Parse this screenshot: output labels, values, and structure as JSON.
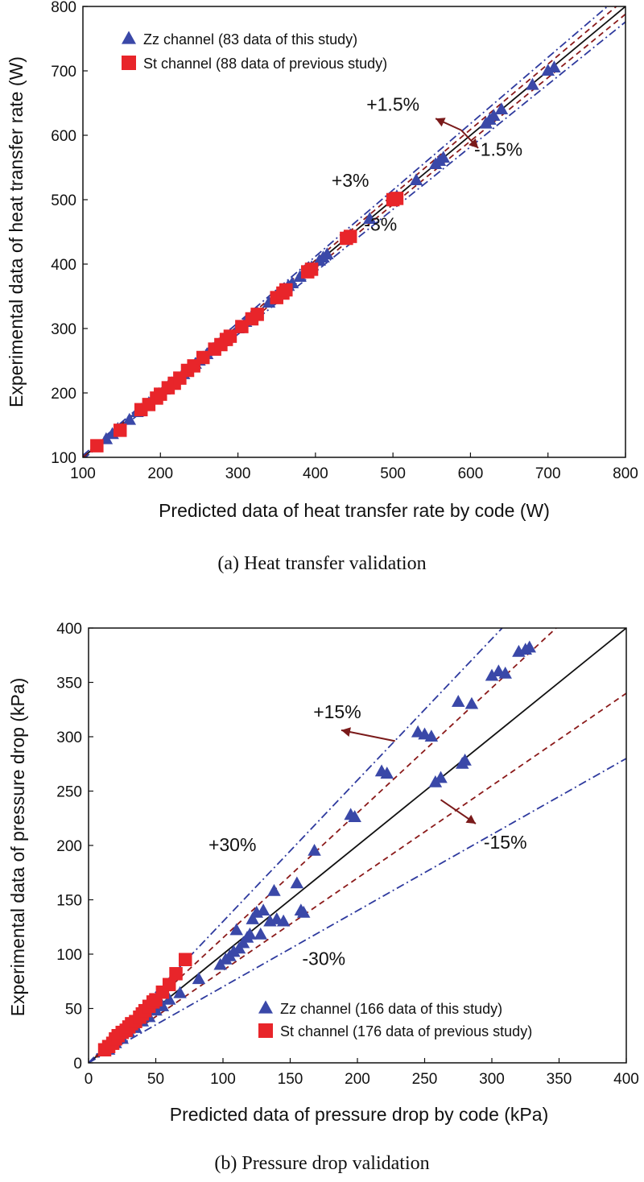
{
  "chart_data": [
    {
      "type": "scatter",
      "caption": "(a)  Heat  transfer  validation",
      "xlabel": "Predicted data of heat transfer rate by code (W)",
      "ylabel": "Experimental data of heat transfer rate (W)",
      "xlim": [
        100,
        800
      ],
      "ylim": [
        100,
        800
      ],
      "xticks": [
        100,
        200,
        300,
        400,
        500,
        600,
        700,
        800
      ],
      "yticks": [
        100,
        200,
        300,
        400,
        500,
        600,
        700,
        800
      ],
      "legend_position": "top-left",
      "reference_lines": [
        {
          "slope": 1.0,
          "style": "solid",
          "color": "#111111"
        },
        {
          "slope": 1.015,
          "style": "dashed",
          "color": "#8b1a1a"
        },
        {
          "slope": 0.985,
          "style": "dashed",
          "color": "#8b1a1a"
        },
        {
          "slope": 1.03,
          "style": "dashdot",
          "color": "#2e3a9e"
        },
        {
          "slope": 0.97,
          "style": "dashdot",
          "color": "#2e3a9e"
        }
      ],
      "annotations": [
        {
          "text": "+1.5%",
          "x": 500,
          "y": 638
        },
        {
          "text": "-1.5%",
          "x": 636,
          "y": 568
        },
        {
          "text": "+3%",
          "x": 445,
          "y": 520
        },
        {
          "text": "-3%",
          "x": 484,
          "y": 452
        }
      ],
      "arrows": [
        {
          "from": [
            588,
            608
          ],
          "to": [
            555,
            626
          ]
        },
        {
          "from": [
            588,
            608
          ],
          "to": [
            610,
            580
          ]
        }
      ],
      "series": [
        {
          "name": "Zz channel (83 data of this study)",
          "marker": "triangle",
          "color": "#3a48a8",
          "x": [
            130,
            138,
            145,
            160,
            170,
            175,
            185,
            190,
            198,
            205,
            210,
            215,
            222,
            230,
            235,
            240,
            245,
            250,
            255,
            260,
            268,
            275,
            280,
            285,
            290,
            300,
            310,
            318,
            325,
            340,
            350,
            358,
            365,
            370,
            380,
            388,
            395,
            405,
            410,
            415,
            445,
            470,
            505,
            530,
            555,
            560,
            565,
            620,
            625,
            630,
            640,
            680,
            700,
            708
          ],
          "y": [
            128,
            136,
            144,
            158,
            170,
            174,
            184,
            190,
            198,
            205,
            210,
            215,
            222,
            229,
            234,
            240,
            245,
            250,
            255,
            260,
            268,
            275,
            280,
            284,
            290,
            300,
            310,
            318,
            324,
            340,
            350,
            358,
            366,
            370,
            380,
            388,
            395,
            405,
            410,
            415,
            445,
            470,
            505,
            530,
            555,
            560,
            565,
            618,
            624,
            630,
            640,
            678,
            700,
            705
          ]
        },
        {
          "name": "St channel (88 data of previous study)",
          "marker": "square",
          "color": "#e8252a",
          "x": [
            118,
            148,
            175,
            185,
            195,
            200,
            210,
            218,
            225,
            235,
            243,
            255,
            270,
            278,
            285,
            290,
            305,
            318,
            325,
            350,
            358,
            362,
            390,
            395,
            440,
            445,
            500,
            505
          ],
          "y": [
            118,
            142,
            174,
            182,
            192,
            198,
            208,
            215,
            223,
            235,
            242,
            255,
            268,
            275,
            283,
            288,
            303,
            315,
            322,
            348,
            355,
            360,
            388,
            392,
            440,
            443,
            500,
            502
          ]
        }
      ]
    },
    {
      "type": "scatter",
      "caption": "(b)  Pressure  drop  validation",
      "xlabel": "Predicted data of pressure drop by code (kPa)",
      "ylabel": "Experimental data of pressure drop (kPa)",
      "xlim": [
        0,
        400
      ],
      "ylim": [
        0,
        400
      ],
      "xticks": [
        0,
        50,
        100,
        150,
        200,
        250,
        300,
        350,
        400
      ],
      "yticks": [
        0,
        50,
        100,
        150,
        200,
        250,
        300,
        350,
        400
      ],
      "legend_position": "bottom-right",
      "reference_lines": [
        {
          "slope": 1.0,
          "style": "solid",
          "color": "#111111"
        },
        {
          "slope": 1.15,
          "style": "dashed",
          "color": "#8b1a1a"
        },
        {
          "slope": 0.85,
          "style": "dashed",
          "color": "#8b1a1a"
        },
        {
          "slope": 1.3,
          "style": "dashdot",
          "color": "#2e3a9e"
        },
        {
          "slope": 0.7,
          "style": "dashdot",
          "color": "#2e3a9e"
        }
      ],
      "annotations": [
        {
          "text": "+15%",
          "x": 185,
          "y": 317
        },
        {
          "text": "-15%",
          "x": 310,
          "y": 197
        },
        {
          "text": "+30%",
          "x": 107,
          "y": 195
        },
        {
          "text": "-30%",
          "x": 175,
          "y": 90
        }
      ],
      "arrows": [
        {
          "from": [
            228,
            296
          ],
          "to": [
            188,
            306
          ]
        },
        {
          "from": [
            262,
            242
          ],
          "to": [
            288,
            220
          ]
        }
      ],
      "series": [
        {
          "name": "Zz channel (166 data of this study)",
          "marker": "triangle",
          "color": "#3a48a8",
          "x": [
            15,
            20,
            25,
            30,
            35,
            40,
            45,
            50,
            55,
            60,
            68,
            82,
            98,
            102,
            105,
            108,
            110,
            112,
            115,
            118,
            120,
            122,
            125,
            128,
            130,
            135,
            138,
            140,
            145,
            155,
            158,
            160,
            168,
            195,
            198,
            218,
            222,
            245,
            250,
            255,
            258,
            262,
            275,
            278,
            280,
            285,
            300,
            305,
            310,
            320,
            325,
            328
          ],
          "y": [
            12,
            18,
            22,
            28,
            32,
            38,
            42,
            48,
            52,
            58,
            64,
            77,
            90,
            95,
            98,
            102,
            122,
            105,
            110,
            115,
            118,
            132,
            138,
            118,
            140,
            130,
            158,
            132,
            130,
            165,
            140,
            138,
            195,
            228,
            226,
            268,
            266,
            304,
            302,
            300,
            258,
            262,
            332,
            275,
            278,
            330,
            356,
            360,
            358,
            378,
            380,
            382
          ]
        },
        {
          "name": "St channel (176 data of previous study)",
          "marker": "square",
          "color": "#e8252a",
          "x": [
            12,
            15,
            18,
            20,
            22,
            25,
            28,
            30,
            32,
            35,
            38,
            40,
            42,
            45,
            48,
            50,
            55,
            60,
            65,
            72
          ],
          "y": [
            12,
            15,
            18,
            22,
            25,
            28,
            30,
            33,
            36,
            38,
            42,
            45,
            48,
            52,
            56,
            58,
            65,
            72,
            82,
            95
          ]
        }
      ]
    }
  ]
}
